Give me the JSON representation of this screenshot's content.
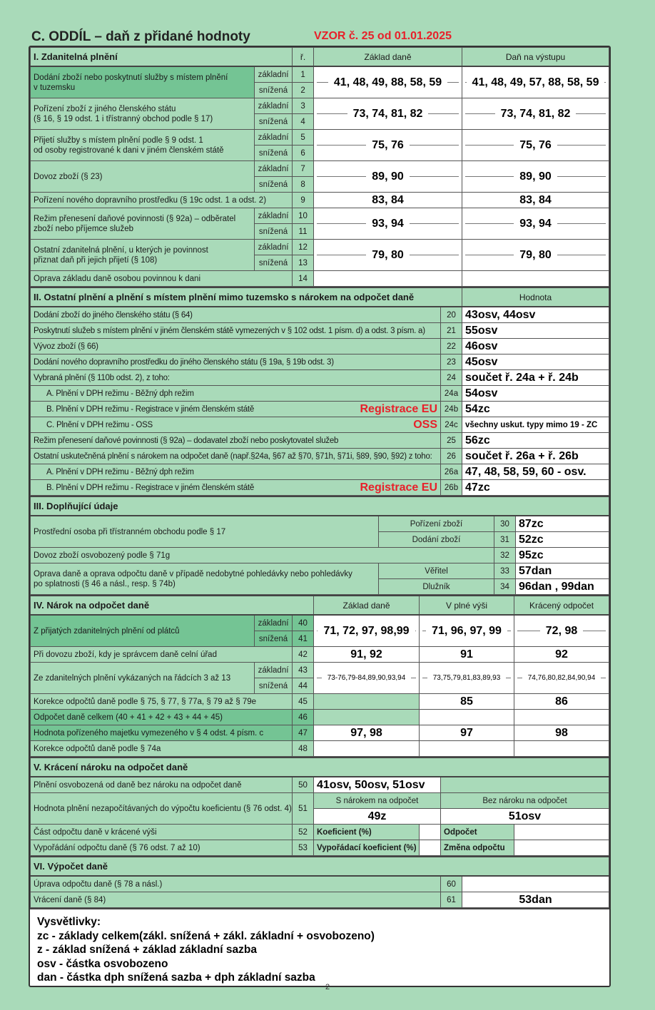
{
  "title": "C. ODDÍL – daň z přidané hodnoty",
  "vzor": "VZOR č. 25 od 01.01.2025",
  "s1": {
    "header": {
      "label": "I. Zdanitelná plnění",
      "r": "ř.",
      "col1": "Základ daně",
      "col2": "Daň na výstupu"
    },
    "sub": {
      "a": "základní",
      "b": "snížená"
    },
    "rows": [
      {
        "label": "Dodání zboží nebo poskytnutí služby s místem plnění\nv tuzemsku",
        "n1": "1",
        "n2": "2",
        "v1": "41, 48, 49, 88, 58, 59",
        "v2": "41, 48, 49, 57, 88, 58, 59"
      },
      {
        "label": "Pořízení zboží z jiného členského státu\n(§ 16, § 19 odst. 1 i třístranný obchod podle § 17)",
        "n1": "3",
        "n2": "4",
        "v1": "73, 74, 81, 82",
        "v2": "73, 74, 81, 82"
      },
      {
        "label": "Přijetí služby s místem plnění podle § 9 odst. 1\nod osoby registrované k dani v jiném členském státě",
        "n1": "5",
        "n2": "6",
        "v1": "75, 76",
        "v2": "75, 76"
      },
      {
        "label": "Dovoz zboží (§ 23)",
        "n1": "7",
        "n2": "8",
        "v1": "89, 90",
        "v2": "89, 90"
      },
      {
        "label": "Pořízení nového dopravního prostředku (§ 19c odst. 1 a odst. 2)",
        "n1": "9",
        "v1": "83, 84",
        "v2": "83, 84"
      },
      {
        "label": "Režim přenesení daňové povinnosti (§ 92a) – odběratel\nzboží nebo příjemce služeb",
        "n1": "10",
        "n2": "11",
        "v1": "93, 94",
        "v2": "93, 94"
      },
      {
        "label": "Ostatní zdanitelná plnění, u kterých je povinnost\npřiznat daň při jejich přijetí (§ 108)",
        "n1": "12",
        "n2": "13",
        "v1": "79, 80",
        "v2": "79, 80"
      },
      {
        "label": "Oprava základu daně osobou povinnou k dani",
        "n1": "14",
        "v1": "",
        "v2": ""
      }
    ]
  },
  "s2": {
    "header": {
      "label": "II. Ostatní plnění a plnění s místem plnění mimo tuzemsko s nárokem na odpočet daně",
      "col": "Hodnota"
    },
    "rows": [
      {
        "label": "Dodání zboží do jiného členského státu (§ 64)",
        "n": "20",
        "v": "43osv, 44osv"
      },
      {
        "label": "Poskytnutí služeb s místem plnění v jiném členském státě vymezených v § 102 odst. 1 písm. d) a odst. 3 písm. a)",
        "n": "21",
        "v": "55osv"
      },
      {
        "label": "Vývoz zboží (§ 66)",
        "n": "22",
        "v": "46osv"
      },
      {
        "label": "Dodání nového dopravního prostředku do jiného členského státu (§ 19a, § 19b odst. 3)",
        "n": "23",
        "v": "45osv"
      },
      {
        "label": "Vybraná plnění (§ 110b odst. 2), z toho:",
        "n": "24",
        "v": "součet ř. 24a + ř. 24b"
      },
      {
        "label": "A. Plnění v DPH režimu - Běžný dph režim",
        "n": "24a",
        "v": "54osv"
      },
      {
        "label": "B. Plnění v DPH režimu - Registrace v jiném členském státě",
        "note": "Registrace EU",
        "n": "24b",
        "v": "54zc"
      },
      {
        "label": "C. Plnění v DPH režimu - OSS",
        "note": "OSS",
        "n": "24c",
        "v": "všechny uskut. typy mimo 19 - ZC"
      },
      {
        "label": "Režim přenesení daňové povinnosti (§ 92a) – dodavatel zboží nebo poskytovatel služeb",
        "n": "25",
        "v": "56zc"
      },
      {
        "label": "Ostatní uskutečněná plnění s nárokem na odpočet daně (např.§24a, §67 až §70, §71h, §71i, §89, §90, §92) z toho:",
        "n": "26",
        "v": "součet ř. 26a + ř. 26b"
      },
      {
        "label": "A. Plnění v DPH režimu - Běžný dph režim",
        "n": "26a",
        "v": "47, 48, 58, 59, 60 - osv."
      },
      {
        "label": "B. Plnění v DPH režimu - Registrace v jiném členském státě",
        "note": "Registrace EU",
        "n": "26b",
        "v": "47zc"
      }
    ]
  },
  "s3": {
    "header": "III. Doplňující údaje",
    "r30": {
      "label": "Prostřední osoba při třístranném obchodu podle § 17",
      "sub1": "Pořízení zboží",
      "n1": "30",
      "v1": "87zc",
      "sub2": "Dodání zboží",
      "n2": "31",
      "v2": "52zc"
    },
    "r32": {
      "label": "Dovoz zboží osvobozený podle § 71g",
      "n": "32",
      "v": "95zc"
    },
    "r33": {
      "label": "Oprava daně a oprava odpočtu daně v případě nedobytné pohledávky nebo pohledávky\npo splatnosti (§ 46 a násl., resp. § 74b)",
      "sub1": "Věřitel",
      "n1": "33",
      "v1": "57dan",
      "sub2": "Dlužník",
      "n2": "34",
      "v2": "96dan , 99dan"
    }
  },
  "s4": {
    "header": {
      "label": "IV. Nárok na odpočet daně",
      "col1": "Základ daně",
      "col2": "V plné výši",
      "col3": "Krácený odpočet"
    },
    "sub": {
      "a": "základní",
      "b": "snížená"
    },
    "r40": {
      "label": "Z přijatých zdanitelných plnění od plátců",
      "n1": "40",
      "n2": "41",
      "v1": "71, 72, 97, 98,99",
      "v2": "71, 96, 97, 99",
      "v3": "72, 98"
    },
    "r42": {
      "label": "Při dovozu zboží, kdy je správcem daně celní úřad",
      "n": "42",
      "v1": "91, 92",
      "v2": "91",
      "v3": "92"
    },
    "r43": {
      "label": "Ze zdanitelných plnění vykázaných na řádcích 3 až 13",
      "n1": "43",
      "n2": "44",
      "v1": "73-76,79-84,89,90,93,94",
      "v2": "73,75,79,81,83,89,93",
      "v3": "74,76,80,82,84,90,94"
    },
    "r45": {
      "label": "Korekce odpočtů daně podle § 75, § 77, § 77a, § 79 až § 79e",
      "n": "45",
      "v2": "85",
      "v3": "86"
    },
    "r46": {
      "label": "Odpočet daně celkem (40 + 41 + 42 + 43 + 44 + 45)",
      "n": "46"
    },
    "r47": {
      "label": "Hodnota pořízeného majetku vymezeného v § 4 odst. 4 písm. c",
      "n": "47",
      "v1": "97, 98",
      "v2": "97",
      "v3": "98"
    },
    "r48": {
      "label": "Korekce odpočtů daně podle § 74a",
      "n": "48"
    }
  },
  "s5": {
    "header": "V. Krácení nároku na odpočet daně",
    "r50": {
      "label": "Plnění osvobozená od daně bez nároku na odpočet daně",
      "n": "50",
      "v": "41osv, 50osv, 51osv"
    },
    "r51": {
      "label": "Hodnota plnění nezapočítávaných do výpočtu koeficientu (§ 76 odst. 4)",
      "n": "51",
      "h1": "S nárokem na odpočet",
      "h2": "Bez nároku na odpočet",
      "v1": "49z",
      "v2": "51osv"
    },
    "r52": {
      "label": "Část odpočtu daně v krácené výši",
      "n": "52",
      "k": "Koeficient (%)",
      "o": "Odpočet"
    },
    "r53": {
      "label": "Vypořádání odpočtu daně (§ 76 odst. 7 až 10)",
      "n": "53",
      "k": "Vypořádací koeficient (%)",
      "o": "Změna odpočtu"
    }
  },
  "s6": {
    "header": "VI. Výpočet daně",
    "r60": {
      "label": "Úprava odpočtu daně (§ 78 a násl.)",
      "n": "60",
      "v": ""
    },
    "r61": {
      "label": "Vrácení daně (§ 84)",
      "n": "61",
      "v": "53dan"
    }
  },
  "legend": {
    "title": "Vysvětlivky:",
    "lines": [
      "zc - základy celkem(zákl. snížená + zákl. základní + osvobozeno)",
      "z - základ snížená + základ základní sazba",
      "osv - částka osvobozeno",
      "dan - částka dph snížená sazba + dph základní sazba"
    ]
  },
  "page_number": "2",
  "colors": {
    "background": "#a9dab9",
    "highlight": "#74c494",
    "red": "#e8202a"
  }
}
